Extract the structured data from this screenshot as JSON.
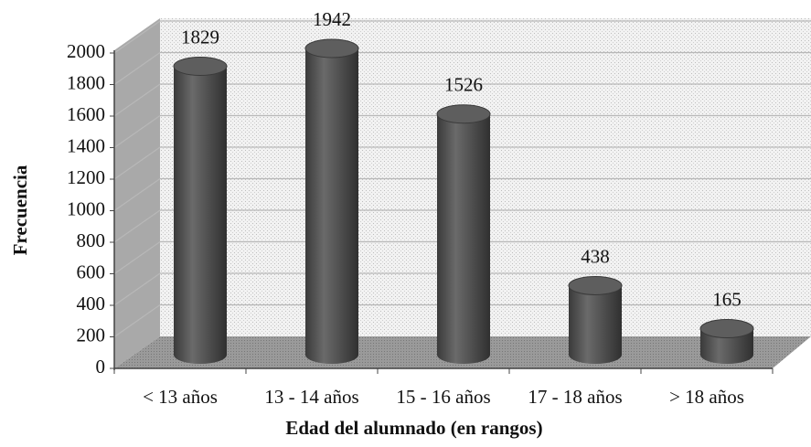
{
  "chart_data": {
    "type": "bar3d",
    "x_label": "Edad del alumnado (en rangos)",
    "y_label": "Frecuencia",
    "categories": [
      "< 13 años",
      "13 - 14 años",
      "15 - 16 años",
      "17 - 18 años",
      "> 18 años"
    ],
    "values": [
      1829,
      1942,
      1526,
      438,
      165
    ],
    "color": "#505050",
    "ylim": [
      0,
      2000
    ],
    "yticks": [
      0,
      200,
      400,
      600,
      800,
      1000,
      1200,
      1400,
      1600,
      1800,
      2000
    ],
    "grid": true
  }
}
